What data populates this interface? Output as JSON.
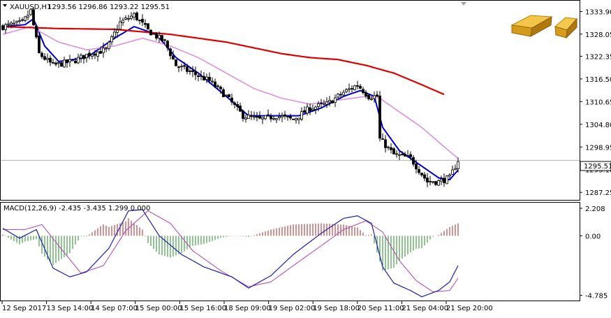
{
  "header": {
    "symbol_label": "XAUUSD,H1",
    "ohlc_text": "1293.56 1296.86 1293.22 1295.51"
  },
  "macd_header": "MACD(12,26,9) -2.435 -3.435 1.299 0.000",
  "price_label": "1295.51",
  "icons": {
    "logo": "gold-bars-icon",
    "dropdown": "triangle-down-icon",
    "scroll": "scroll-marker-icon"
  },
  "colors": {
    "bull_candle": "#000000",
    "bear_candle": "#000000",
    "fast_ma": "#0000cc",
    "mid_ma": "#dd88dd",
    "slow_ma": "#dd0000",
    "hist_pos": "#aa2222",
    "hist_neg": "#228822",
    "macd_line": "#1e1eb0",
    "signal_line": "#b040b0",
    "price_line": "#b0b0b0"
  },
  "chart_data": [
    {
      "type": "candlestick",
      "title": "XAUUSD,H1",
      "y_ticks": [
        "1333.90",
        "1328.05",
        "1322.35",
        "1316.50",
        "1310.65",
        "1304.80",
        "1298.95",
        "1293.10",
        "1287.25"
      ],
      "ylim": [
        1285.3,
        1336.5
      ],
      "x_tick_labels": [
        "12 Sep 2017",
        "13 Sep 14:00",
        "14 Sep 07:00",
        "15 Sep 00:00",
        "15 Sep 16:00",
        "18 Sep 09:00",
        "19 Sep 02:00",
        "19 Sep 18:00",
        "20 Sep 11:00",
        "21 Sep 04:00",
        "21 Sep 20:00"
      ],
      "close_keyframes": [
        [
          0,
          1330
        ],
        [
          7,
          1331
        ],
        [
          10,
          1334
        ],
        [
          13,
          1323
        ],
        [
          18,
          1320
        ],
        [
          25,
          1321
        ],
        [
          31,
          1323
        ],
        [
          37,
          1324
        ],
        [
          42,
          1331
        ],
        [
          47,
          1333
        ],
        [
          52,
          1329
        ],
        [
          58,
          1326
        ],
        [
          62,
          1320
        ],
        [
          68,
          1318
        ],
        [
          74,
          1316
        ],
        [
          80,
          1312
        ],
        [
          86,
          1307
        ],
        [
          92,
          1306
        ],
        [
          98,
          1307
        ],
        [
          104,
          1306
        ],
        [
          110,
          1309
        ],
        [
          116,
          1310
        ],
        [
          122,
          1313
        ],
        [
          127,
          1315
        ],
        [
          131,
          1312
        ],
        [
          134,
          1312
        ],
        [
          135,
          1301
        ],
        [
          140,
          1297
        ],
        [
          146,
          1296
        ],
        [
          152,
          1290
        ],
        [
          156,
          1290
        ],
        [
          160,
          1291
        ],
        [
          163,
          1295.5
        ]
      ],
      "bar_count": 164,
      "series": [
        {
          "name": "MA fast",
          "keyframes": [
            [
              0,
              1330
            ],
            [
              8,
              1330.5
            ],
            [
              11,
              1332
            ],
            [
              15,
              1325
            ],
            [
              20,
              1321
            ],
            [
              30,
              1322
            ],
            [
              40,
              1327
            ],
            [
              47,
              1330
            ],
            [
              55,
              1328
            ],
            [
              62,
              1322
            ],
            [
              70,
              1318
            ],
            [
              80,
              1312
            ],
            [
              88,
              1307
            ],
            [
              96,
              1307
            ],
            [
              106,
              1307
            ],
            [
              114,
              1309
            ],
            [
              122,
              1312
            ],
            [
              128,
              1313.5
            ],
            [
              133,
              1312
            ],
            [
              136,
              1304
            ],
            [
              142,
              1298
            ],
            [
              150,
              1294
            ],
            [
              156,
              1291
            ],
            [
              160,
              1290.5
            ],
            [
              163,
              1293
            ]
          ]
        },
        {
          "name": "MA mid",
          "keyframes": [
            [
              0,
              1328
            ],
            [
              10,
              1330
            ],
            [
              20,
              1326
            ],
            [
              30,
              1324
            ],
            [
              40,
              1325
            ],
            [
              50,
              1327
            ],
            [
              60,
              1325
            ],
            [
              70,
              1322
            ],
            [
              80,
              1318
            ],
            [
              90,
              1314
            ],
            [
              100,
              1311.5
            ],
            [
              110,
              1310
            ],
            [
              120,
              1311
            ],
            [
              130,
              1312
            ],
            [
              135,
              1311.5
            ],
            [
              140,
              1309
            ],
            [
              150,
              1304
            ],
            [
              158,
              1299
            ],
            [
              163,
              1296
            ]
          ]
        },
        {
          "name": "MA slow",
          "keyframes": [
            [
              0,
              1330
            ],
            [
              20,
              1329.5
            ],
            [
              40,
              1329.3
            ],
            [
              60,
              1328
            ],
            [
              80,
              1326
            ],
            [
              100,
              1323
            ],
            [
              110,
              1322
            ],
            [
              120,
              1321.5
            ],
            [
              130,
              1320
            ],
            [
              140,
              1318
            ],
            [
              150,
              1315
            ],
            [
              158,
              1312.5
            ]
          ]
        }
      ],
      "current_price": 1295.51
    },
    {
      "type": "macd",
      "title": "MACD(12,26,9)",
      "y_ticks": [
        "2.208",
        "0.00",
        "-4.785"
      ],
      "ylim": [
        -5.2,
        2.6
      ],
      "macd_keyframes": [
        [
          0,
          0.6
        ],
        [
          6,
          -0.2
        ],
        [
          12,
          0.5
        ],
        [
          18,
          -2.6
        ],
        [
          24,
          -3.3
        ],
        [
          30,
          -2.9
        ],
        [
          38,
          -1.0
        ],
        [
          45,
          2.0
        ],
        [
          50,
          2.1
        ],
        [
          56,
          0.0
        ],
        [
          64,
          -1.5
        ],
        [
          72,
          -2.5
        ],
        [
          82,
          -3.3
        ],
        [
          88,
          -4.2
        ],
        [
          96,
          -3.2
        ],
        [
          104,
          -1.5
        ],
        [
          114,
          0.2
        ],
        [
          122,
          1.4
        ],
        [
          127,
          1.6
        ],
        [
          132,
          1.0
        ],
        [
          136,
          -2.5
        ],
        [
          140,
          -3.8
        ],
        [
          146,
          -4.4
        ],
        [
          150,
          -4.9
        ],
        [
          156,
          -4.4
        ],
        [
          160,
          -3.7
        ],
        [
          163,
          -2.4
        ]
      ],
      "signal_keyframes": [
        [
          0,
          0.5
        ],
        [
          8,
          0.5
        ],
        [
          14,
          0.9
        ],
        [
          20,
          -0.8
        ],
        [
          28,
          -3.0
        ],
        [
          36,
          -2.4
        ],
        [
          44,
          0.4
        ],
        [
          52,
          2.0
        ],
        [
          60,
          1.0
        ],
        [
          68,
          -1.2
        ],
        [
          78,
          -2.8
        ],
        [
          88,
          -4.1
        ],
        [
          96,
          -3.7
        ],
        [
          104,
          -2.4
        ],
        [
          114,
          -0.8
        ],
        [
          122,
          0.5
        ],
        [
          130,
          1.2
        ],
        [
          136,
          0.3
        ],
        [
          142,
          -2.0
        ],
        [
          148,
          -3.6
        ],
        [
          154,
          -4.5
        ],
        [
          160,
          -4.4
        ],
        [
          163,
          -3.4
        ]
      ],
      "histogram_note": "MACD minus signal shown as histogram bars"
    }
  ]
}
